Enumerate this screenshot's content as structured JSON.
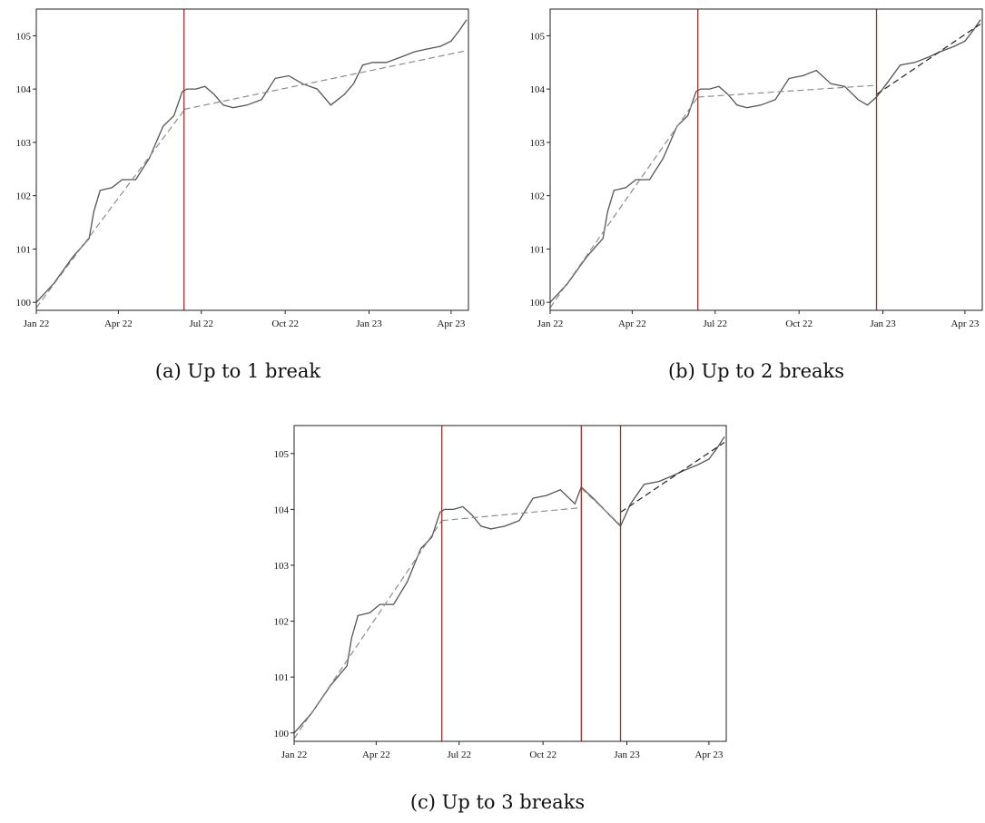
{
  "chart_data": [
    {
      "type": "line",
      "caption": "(a) Up to 1 break",
      "x_ticks": [
        "Jan 22",
        "Apr 22",
        "Jul 22",
        "Oct 22",
        "Jan 23",
        "Apr 23"
      ],
      "y_ticks": [
        100,
        101,
        102,
        103,
        104,
        105
      ],
      "xlim": [
        "2022-01-01",
        "2023-04-20"
      ],
      "ylim": [
        99.85,
        105.5
      ],
      "grid": false,
      "breaks": [
        "2022-06-12"
      ],
      "series": [
        {
          "style": "solid",
          "color": "#555555",
          "x": [
            "2022-01-01",
            "2022-01-20",
            "2022-02-10",
            "2022-02-28",
            "2022-03-05",
            "2022-03-12",
            "2022-03-25",
            "2022-04-05",
            "2022-04-20",
            "2022-05-05",
            "2022-05-20",
            "2022-06-01",
            "2022-06-10",
            "2022-06-15",
            "2022-06-25",
            "2022-07-05",
            "2022-07-15",
            "2022-07-25",
            "2022-08-05",
            "2022-08-20",
            "2022-09-05",
            "2022-09-20",
            "2022-10-05",
            "2022-10-20",
            "2022-11-05",
            "2022-11-20",
            "2022-12-05",
            "2022-12-15",
            "2022-12-25",
            "2023-01-05",
            "2023-01-20",
            "2023-02-05",
            "2023-02-20",
            "2023-03-05",
            "2023-03-20",
            "2023-04-01",
            "2023-04-10",
            "2023-04-18"
          ],
          "y": [
            100.0,
            100.35,
            100.85,
            101.2,
            101.7,
            102.1,
            102.15,
            102.3,
            102.3,
            102.7,
            103.3,
            103.5,
            103.95,
            104.0,
            104.0,
            104.05,
            103.9,
            103.7,
            103.65,
            103.7,
            103.8,
            104.2,
            104.25,
            104.1,
            104.0,
            103.7,
            103.9,
            104.1,
            104.45,
            104.5,
            104.5,
            104.6,
            104.7,
            104.75,
            104.8,
            104.9,
            105.1,
            105.3
          ]
        },
        {
          "style": "dashed",
          "color": "#8c8c8c",
          "x": [
            "2022-01-01",
            "2022-06-12"
          ],
          "y": [
            99.9,
            103.6
          ]
        },
        {
          "style": "dashed",
          "color": "#8c8c8c",
          "x": [
            "2022-06-12",
            "2023-04-18"
          ],
          "y": [
            103.62,
            104.72
          ]
        }
      ]
    },
    {
      "type": "line",
      "caption": "(b) Up to 2 breaks",
      "x_ticks": [
        "Jan 22",
        "Apr 22",
        "Jul 22",
        "Oct 22",
        "Jan 23",
        "Apr 23"
      ],
      "y_ticks": [
        100,
        101,
        102,
        103,
        104,
        105
      ],
      "xlim": [
        "2022-01-01",
        "2023-04-20"
      ],
      "ylim": [
        99.85,
        105.5
      ],
      "grid": false,
      "breaks": [
        "2022-06-12",
        "2022-12-25"
      ],
      "series": [
        {
          "style": "solid",
          "color": "#555555",
          "x": [
            "2022-01-01",
            "2022-01-20",
            "2022-02-10",
            "2022-02-28",
            "2022-03-05",
            "2022-03-12",
            "2022-03-25",
            "2022-04-05",
            "2022-04-20",
            "2022-05-05",
            "2022-05-20",
            "2022-06-01",
            "2022-06-10",
            "2022-06-15",
            "2022-06-25",
            "2022-07-05",
            "2022-07-15",
            "2022-07-25",
            "2022-08-05",
            "2022-08-20",
            "2022-09-05",
            "2022-09-20",
            "2022-10-05",
            "2022-10-20",
            "2022-11-05",
            "2022-11-20",
            "2022-12-05",
            "2022-12-15",
            "2022-12-25",
            "2023-01-05",
            "2023-01-20",
            "2023-02-05",
            "2023-02-20",
            "2023-03-05",
            "2023-03-20",
            "2023-04-01",
            "2023-04-10",
            "2023-04-18"
          ],
          "y": [
            100.0,
            100.35,
            100.85,
            101.2,
            101.7,
            102.1,
            102.15,
            102.3,
            102.3,
            102.7,
            103.3,
            103.5,
            103.95,
            104.0,
            104.0,
            104.05,
            103.9,
            103.7,
            103.65,
            103.7,
            103.8,
            104.2,
            104.25,
            104.35,
            104.1,
            104.05,
            103.8,
            103.7,
            103.85,
            104.1,
            104.45,
            104.5,
            104.6,
            104.7,
            104.8,
            104.9,
            105.1,
            105.3
          ]
        },
        {
          "style": "dashed",
          "color": "#8c8c8c",
          "x": [
            "2022-01-01",
            "2022-06-12"
          ],
          "y": [
            99.9,
            103.85
          ]
        },
        {
          "style": "dashed",
          "color": "#8c8c8c",
          "x": [
            "2022-06-12",
            "2022-12-25"
          ],
          "y": [
            103.85,
            104.07
          ]
        },
        {
          "style": "dashed",
          "color": "#222222",
          "x": [
            "2022-12-25",
            "2023-04-18"
          ],
          "y": [
            103.9,
            105.22
          ]
        }
      ]
    },
    {
      "type": "line",
      "caption": "(c) Up to 3 breaks",
      "x_ticks": [
        "Jan 22",
        "Apr 22",
        "Jul 22",
        "Oct 22",
        "Jan 23",
        "Apr 23"
      ],
      "y_ticks": [
        100,
        101,
        102,
        103,
        104,
        105
      ],
      "xlim": [
        "2022-01-01",
        "2023-04-20"
      ],
      "ylim": [
        99.85,
        105.5
      ],
      "grid": false,
      "breaks": [
        "2022-06-12",
        "2022-11-12",
        "2022-12-25"
      ],
      "series": [
        {
          "style": "solid",
          "color": "#555555",
          "x": [
            "2022-01-01",
            "2022-01-20",
            "2022-02-10",
            "2022-02-28",
            "2022-03-05",
            "2022-03-12",
            "2022-03-25",
            "2022-04-05",
            "2022-04-20",
            "2022-05-05",
            "2022-05-20",
            "2022-06-01",
            "2022-06-10",
            "2022-06-15",
            "2022-06-25",
            "2022-07-05",
            "2022-07-15",
            "2022-07-25",
            "2022-08-05",
            "2022-08-20",
            "2022-09-05",
            "2022-09-20",
            "2022-10-05",
            "2022-10-20",
            "2022-11-05",
            "2022-11-12",
            "2022-11-25",
            "2022-12-10",
            "2022-12-25",
            "2023-01-05",
            "2023-01-20",
            "2023-02-05",
            "2023-02-20",
            "2023-03-05",
            "2023-03-20",
            "2023-04-01",
            "2023-04-10",
            "2023-04-18"
          ],
          "y": [
            100.0,
            100.35,
            100.85,
            101.2,
            101.7,
            102.1,
            102.15,
            102.3,
            102.3,
            102.7,
            103.3,
            103.5,
            103.95,
            104.0,
            104.0,
            104.05,
            103.9,
            103.7,
            103.65,
            103.7,
            103.8,
            104.2,
            104.25,
            104.35,
            104.1,
            104.4,
            104.2,
            103.95,
            103.7,
            104.1,
            104.45,
            104.5,
            104.6,
            104.7,
            104.8,
            104.9,
            105.1,
            105.3
          ]
        },
        {
          "style": "dashed",
          "color": "#8c8c8c",
          "x": [
            "2022-01-01",
            "2022-06-12"
          ],
          "y": [
            99.9,
            103.8
          ]
        },
        {
          "style": "dashed",
          "color": "#8c8c8c",
          "x": [
            "2022-06-12",
            "2022-11-12"
          ],
          "y": [
            103.8,
            104.03
          ]
        },
        {
          "style": "dashed",
          "color": "#8c8c8c",
          "x": [
            "2022-11-12",
            "2022-12-25"
          ],
          "y": [
            104.38,
            103.72
          ]
        },
        {
          "style": "dashed",
          "color": "#222222",
          "x": [
            "2022-12-25",
            "2023-04-18"
          ],
          "y": [
            103.95,
            105.2
          ]
        }
      ]
    }
  ],
  "colors": {
    "break_line": "#a0302e",
    "axis": "#222222"
  }
}
